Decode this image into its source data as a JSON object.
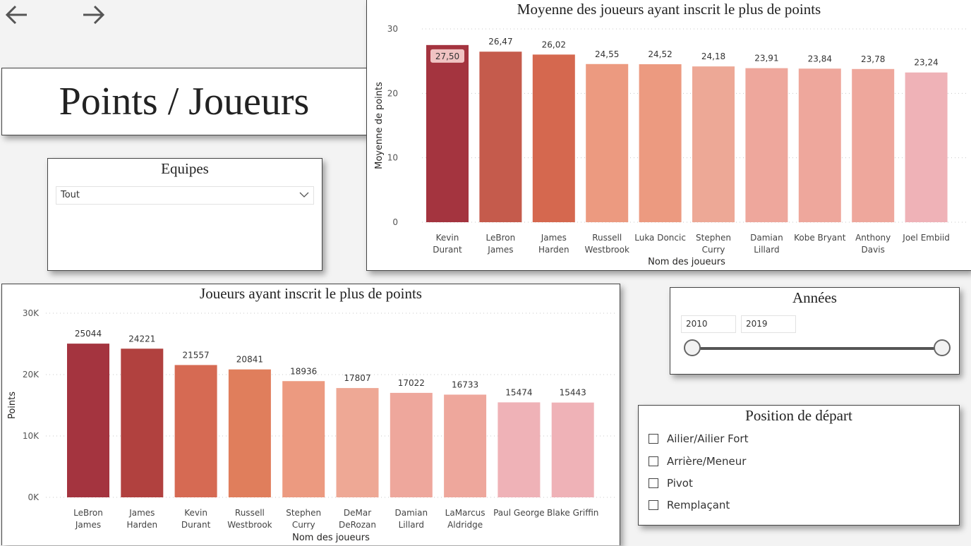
{
  "nav": {
    "back_icon": "arrow-left-icon",
    "forward_icon": "arrow-right-icon"
  },
  "title": "Points / Joueurs",
  "equipes": {
    "title": "Equipes",
    "selected": "Tout",
    "icon": "chevron-down-icon"
  },
  "annees": {
    "title": "Années",
    "start": "2010",
    "end": "2019"
  },
  "position": {
    "title": "Position de départ",
    "options": [
      {
        "label": "Ailier/Ailier Fort",
        "checked": false
      },
      {
        "label": "Arrière/Meneur",
        "checked": false
      },
      {
        "label": "Pivot",
        "checked": false
      },
      {
        "label": "Remplaçant",
        "checked": false
      }
    ]
  },
  "chart_data": [
    {
      "type": "bar",
      "title": "Moyenne des joueurs ayant inscrit le plus de points",
      "xlabel": "Nom des joueurs",
      "ylabel": "Moyenne de points",
      "ylim": [
        0,
        30
      ],
      "yticks": [
        0,
        10,
        20,
        30
      ],
      "ytick_labels": [
        "0",
        "10",
        "20",
        "30"
      ],
      "categories": [
        [
          "Kevin",
          "Durant"
        ],
        [
          "LeBron",
          "James"
        ],
        [
          "James",
          "Harden"
        ],
        [
          "Russell",
          "Westbrook"
        ],
        [
          "Luka Doncic"
        ],
        [
          "Stephen",
          "Curry"
        ],
        [
          "Damian",
          "Lillard"
        ],
        [
          "Kobe Bryant"
        ],
        [
          "Anthony",
          "Davis"
        ],
        [
          "Joel Embiid"
        ]
      ],
      "values": [
        27.5,
        26.47,
        26.02,
        24.55,
        24.52,
        24.18,
        23.91,
        23.84,
        23.78,
        23.24
      ],
      "value_labels": [
        "27,50",
        "26,47",
        "26,02",
        "24,55",
        "24,52",
        "24,18",
        "23,91",
        "23,84",
        "23,78",
        "23,24"
      ],
      "colors": [
        "#a4343f",
        "#c55b4c",
        "#d5684f",
        "#ec9a80",
        "#ec9a80",
        "#eda896",
        "#eea79c",
        "#eea79c",
        "#eea79c",
        "#efb2b7"
      ],
      "grid": true
    },
    {
      "type": "bar",
      "title": "Joueurs ayant inscrit le plus de points",
      "xlabel": "Nom des joueurs",
      "ylabel": "Points",
      "ylim": [
        0,
        30000
      ],
      "yticks": [
        0,
        10000,
        20000,
        30000
      ],
      "ytick_labels": [
        "0K",
        "10K",
        "20K",
        "30K"
      ],
      "categories": [
        [
          "LeBron",
          "James"
        ],
        [
          "James",
          "Harden"
        ],
        [
          "Kevin",
          "Durant"
        ],
        [
          "Russell",
          "Westbrook"
        ],
        [
          "Stephen",
          "Curry"
        ],
        [
          "DeMar",
          "DeRozan"
        ],
        [
          "Damian",
          "Lillard"
        ],
        [
          "LaMarcus",
          "Aldridge"
        ],
        [
          "Paul George"
        ],
        [
          "Blake Griffin"
        ]
      ],
      "values": [
        25044,
        24221,
        21557,
        20841,
        18936,
        17807,
        17022,
        16733,
        15474,
        15443
      ],
      "value_labels": [
        "25044",
        "24221",
        "21557",
        "20841",
        "18936",
        "17807",
        "17022",
        "16733",
        "15474",
        "15443"
      ],
      "colors": [
        "#a4343f",
        "#b1413f",
        "#d66a53",
        "#e07e5c",
        "#ec9a80",
        "#eea895",
        "#eea79c",
        "#eea79c",
        "#efb2b7",
        "#efb2b7"
      ],
      "grid": true
    }
  ]
}
